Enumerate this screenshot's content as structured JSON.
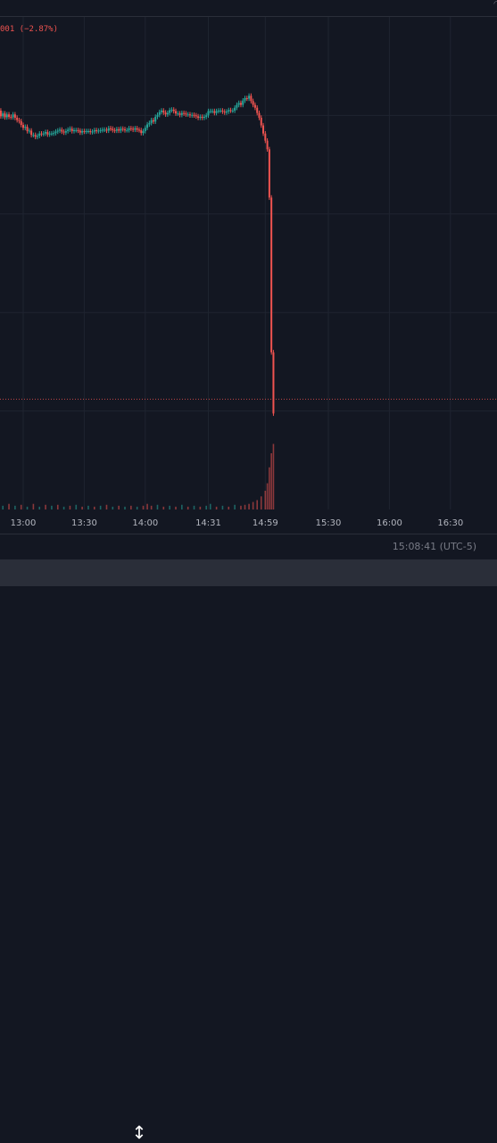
{
  "legend": {
    "change_text": "001 (−2.87%)"
  },
  "status_bar": {
    "clock": "15:08:41 (UTC-5)"
  },
  "colors": {
    "up": "#26a69a",
    "down": "#ef5350",
    "background": "#131722",
    "grid": "#1f2430"
  },
  "icons": {
    "resize": "vertical-resize-icon",
    "corner": "corner-mark-icon"
  },
  "chart_data": {
    "type": "candlestick",
    "x_ticks": [
      "13:00",
      "13:30",
      "14:00",
      "14:31",
      "14:59",
      "15:30",
      "16:00",
      "16:30"
    ],
    "tick_minutes": [
      780,
      810,
      840,
      871,
      899,
      930,
      960,
      990
    ],
    "price_range": [
      0,
      100
    ],
    "grid": true,
    "reference_line_level": 20,
    "series": [
      {
        "t": 767,
        "o": 78.5,
        "c": 79.5
      },
      {
        "t": 768,
        "o": 79.5,
        "c": 80.4
      },
      {
        "t": 769,
        "o": 80.4,
        "c": 79.2
      },
      {
        "t": 770,
        "o": 79.2,
        "c": 79.8
      },
      {
        "t": 771,
        "o": 79.8,
        "c": 79.0
      },
      {
        "t": 772,
        "o": 79.0,
        "c": 79.6
      },
      {
        "t": 773,
        "o": 79.6,
        "c": 79.1
      },
      {
        "t": 774,
        "o": 79.1,
        "c": 79.0
      },
      {
        "t": 775,
        "o": 79.0,
        "c": 79.6
      },
      {
        "t": 776,
        "o": 79.6,
        "c": 78.9
      },
      {
        "t": 777,
        "o": 78.9,
        "c": 78.4
      },
      {
        "t": 778,
        "o": 78.4,
        "c": 78.2
      },
      {
        "t": 779,
        "o": 78.2,
        "c": 77.4
      },
      {
        "t": 780,
        "o": 77.4,
        "c": 76.8
      },
      {
        "t": 781,
        "o": 76.8,
        "c": 77.0
      },
      {
        "t": 782,
        "o": 77.0,
        "c": 76.1
      },
      {
        "t": 783,
        "o": 76.1,
        "c": 76.2
      },
      {
        "t": 784,
        "o": 76.2,
        "c": 75.3
      },
      {
        "t": 785,
        "o": 75.3,
        "c": 75.3
      },
      {
        "t": 786,
        "o": 75.3,
        "c": 74.9
      },
      {
        "t": 787,
        "o": 74.9,
        "c": 75.1
      },
      {
        "t": 788,
        "o": 75.1,
        "c": 75.6
      },
      {
        "t": 789,
        "o": 75.6,
        "c": 75.5
      },
      {
        "t": 790,
        "o": 75.5,
        "c": 75.6
      },
      {
        "t": 791,
        "o": 75.6,
        "c": 75.9
      },
      {
        "t": 792,
        "o": 75.9,
        "c": 75.4
      },
      {
        "t": 793,
        "o": 75.4,
        "c": 75.6
      },
      {
        "t": 794,
        "o": 75.6,
        "c": 75.6
      },
      {
        "t": 795,
        "o": 75.6,
        "c": 75.7
      },
      {
        "t": 796,
        "o": 75.7,
        "c": 76.0
      },
      {
        "t": 797,
        "o": 76.0,
        "c": 76.2
      },
      {
        "t": 798,
        "o": 76.2,
        "c": 76.4
      },
      {
        "t": 799,
        "o": 76.4,
        "c": 76.0
      },
      {
        "t": 800,
        "o": 76.0,
        "c": 75.8
      },
      {
        "t": 801,
        "o": 75.8,
        "c": 76.1
      },
      {
        "t": 802,
        "o": 76.1,
        "c": 76.4
      },
      {
        "t": 803,
        "o": 76.4,
        "c": 76.6
      },
      {
        "t": 804,
        "o": 76.6,
        "c": 76.1
      },
      {
        "t": 805,
        "o": 76.1,
        "c": 76.3
      },
      {
        "t": 806,
        "o": 76.3,
        "c": 76.3
      },
      {
        "t": 807,
        "o": 76.3,
        "c": 76.2
      },
      {
        "t": 808,
        "o": 76.2,
        "c": 75.8
      },
      {
        "t": 809,
        "o": 75.8,
        "c": 76.1
      },
      {
        "t": 810,
        "o": 76.1,
        "c": 76.0
      },
      {
        "t": 811,
        "o": 76.0,
        "c": 76.1
      },
      {
        "t": 812,
        "o": 76.1,
        "c": 76.1
      },
      {
        "t": 813,
        "o": 76.1,
        "c": 75.9
      },
      {
        "t": 814,
        "o": 75.9,
        "c": 76.0
      },
      {
        "t": 815,
        "o": 76.0,
        "c": 76.3
      },
      {
        "t": 816,
        "o": 76.3,
        "c": 76.1
      },
      {
        "t": 817,
        "o": 76.1,
        "c": 76.2
      },
      {
        "t": 818,
        "o": 76.2,
        "c": 76.3
      },
      {
        "t": 819,
        "o": 76.3,
        "c": 76.4
      },
      {
        "t": 820,
        "o": 76.4,
        "c": 76.4
      },
      {
        "t": 821,
        "o": 76.4,
        "c": 76.2
      },
      {
        "t": 822,
        "o": 76.2,
        "c": 76.7
      },
      {
        "t": 823,
        "o": 76.7,
        "c": 76.6
      },
      {
        "t": 824,
        "o": 76.6,
        "c": 76.3
      },
      {
        "t": 825,
        "o": 76.3,
        "c": 76.2
      },
      {
        "t": 826,
        "o": 76.2,
        "c": 76.5
      },
      {
        "t": 827,
        "o": 76.5,
        "c": 76.2
      },
      {
        "t": 828,
        "o": 76.2,
        "c": 76.6
      },
      {
        "t": 829,
        "o": 76.6,
        "c": 76.5
      },
      {
        "t": 830,
        "o": 76.5,
        "c": 76.3
      },
      {
        "t": 831,
        "o": 76.3,
        "c": 76.3
      },
      {
        "t": 832,
        "o": 76.3,
        "c": 76.7
      },
      {
        "t": 833,
        "o": 76.7,
        "c": 76.6
      },
      {
        "t": 834,
        "o": 76.6,
        "c": 76.4
      },
      {
        "t": 835,
        "o": 76.4,
        "c": 76.7
      },
      {
        "t": 836,
        "o": 76.7,
        "c": 76.4
      },
      {
        "t": 837,
        "o": 76.4,
        "c": 76.3
      },
      {
        "t": 838,
        "o": 76.3,
        "c": 75.7
      },
      {
        "t": 839,
        "o": 75.7,
        "c": 76.1
      },
      {
        "t": 840,
        "o": 76.1,
        "c": 76.8
      },
      {
        "t": 841,
        "o": 76.8,
        "c": 77.5
      },
      {
        "t": 842,
        "o": 77.5,
        "c": 77.8
      },
      {
        "t": 843,
        "o": 77.8,
        "c": 78.4
      },
      {
        "t": 844,
        "o": 78.4,
        "c": 78.1
      },
      {
        "t": 845,
        "o": 78.1,
        "c": 79.1
      },
      {
        "t": 846,
        "o": 79.1,
        "c": 79.5
      },
      {
        "t": 847,
        "o": 79.5,
        "c": 80.1
      },
      {
        "t": 848,
        "o": 80.1,
        "c": 80.4
      },
      {
        "t": 849,
        "o": 80.4,
        "c": 80.0
      },
      {
        "t": 850,
        "o": 80.0,
        "c": 79.6
      },
      {
        "t": 851,
        "o": 79.6,
        "c": 79.9
      },
      {
        "t": 852,
        "o": 79.9,
        "c": 80.5
      },
      {
        "t": 853,
        "o": 80.5,
        "c": 80.6
      },
      {
        "t": 854,
        "o": 80.6,
        "c": 80.3
      },
      {
        "t": 855,
        "o": 80.3,
        "c": 79.8
      },
      {
        "t": 856,
        "o": 79.8,
        "c": 79.8
      },
      {
        "t": 857,
        "o": 79.8,
        "c": 79.5
      },
      {
        "t": 858,
        "o": 79.5,
        "c": 79.9
      },
      {
        "t": 859,
        "o": 79.9,
        "c": 79.8
      },
      {
        "t": 860,
        "o": 79.8,
        "c": 79.6
      },
      {
        "t": 861,
        "o": 79.6,
        "c": 79.6
      },
      {
        "t": 862,
        "o": 79.6,
        "c": 79.4
      },
      {
        "t": 863,
        "o": 79.4,
        "c": 79.5
      },
      {
        "t": 864,
        "o": 79.5,
        "c": 79.4
      },
      {
        "t": 865,
        "o": 79.4,
        "c": 79.2
      },
      {
        "t": 866,
        "o": 79.2,
        "c": 78.9
      },
      {
        "t": 867,
        "o": 78.9,
        "c": 79.1
      },
      {
        "t": 868,
        "o": 79.1,
        "c": 78.9
      },
      {
        "t": 869,
        "o": 78.9,
        "c": 79.1
      },
      {
        "t": 870,
        "o": 79.1,
        "c": 79.4
      },
      {
        "t": 871,
        "o": 79.4,
        "c": 80.3
      },
      {
        "t": 872,
        "o": 80.3,
        "c": 80.3
      },
      {
        "t": 873,
        "o": 80.3,
        "c": 80.3
      },
      {
        "t": 874,
        "o": 80.3,
        "c": 79.9
      },
      {
        "t": 875,
        "o": 79.9,
        "c": 80.3
      },
      {
        "t": 876,
        "o": 80.3,
        "c": 80.4
      },
      {
        "t": 877,
        "o": 80.4,
        "c": 80.4
      },
      {
        "t": 878,
        "o": 80.4,
        "c": 80.2
      },
      {
        "t": 879,
        "o": 80.2,
        "c": 80.0
      },
      {
        "t": 880,
        "o": 80.0,
        "c": 80.2
      },
      {
        "t": 881,
        "o": 80.2,
        "c": 80.5
      },
      {
        "t": 882,
        "o": 80.5,
        "c": 80.4
      },
      {
        "t": 883,
        "o": 80.4,
        "c": 80.4
      },
      {
        "t": 884,
        "o": 80.4,
        "c": 81.0
      },
      {
        "t": 885,
        "o": 81.0,
        "c": 81.6
      },
      {
        "t": 886,
        "o": 81.6,
        "c": 82.0
      },
      {
        "t": 887,
        "o": 82.0,
        "c": 81.6
      },
      {
        "t": 888,
        "o": 81.6,
        "c": 82.5
      },
      {
        "t": 889,
        "o": 82.5,
        "c": 83.0
      },
      {
        "t": 890,
        "o": 83.0,
        "c": 82.9
      },
      {
        "t": 891,
        "o": 82.9,
        "c": 83.5
      },
      {
        "t": 892,
        "o": 83.5,
        "c": 82.4
      },
      {
        "t": 893,
        "o": 82.4,
        "c": 81.6
      },
      {
        "t": 894,
        "o": 81.6,
        "c": 81.0
      },
      {
        "t": 895,
        "o": 81.0,
        "c": 79.9
      },
      {
        "t": 896,
        "o": 79.9,
        "c": 78.9
      },
      {
        "t": 897,
        "o": 78.9,
        "c": 77.3
      },
      {
        "t": 898,
        "o": 77.3,
        "c": 75.6
      },
      {
        "t": 899,
        "o": 75.6,
        "c": 74.1
      },
      {
        "t": 900,
        "o": 74.1,
        "c": 72.3
      },
      {
        "t": 901,
        "o": 72.3,
        "c": 62.2
      },
      {
        "t": 902,
        "o": 62.2,
        "c": 29.8
      },
      {
        "t": 903,
        "o": 29.8,
        "c": 17.0
      }
    ],
    "volume": [
      {
        "t": 767,
        "v": 5
      },
      {
        "t": 770,
        "v": 4
      },
      {
        "t": 773,
        "v": 6
      },
      {
        "t": 776,
        "v": 4
      },
      {
        "t": 779,
        "v": 5
      },
      {
        "t": 782,
        "v": 3
      },
      {
        "t": 785,
        "v": 6
      },
      {
        "t": 788,
        "v": 3
      },
      {
        "t": 791,
        "v": 5
      },
      {
        "t": 794,
        "v": 4
      },
      {
        "t": 797,
        "v": 5
      },
      {
        "t": 800,
        "v": 3
      },
      {
        "t": 803,
        "v": 4
      },
      {
        "t": 806,
        "v": 5
      },
      {
        "t": 809,
        "v": 3
      },
      {
        "t": 812,
        "v": 4
      },
      {
        "t": 815,
        "v": 3
      },
      {
        "t": 818,
        "v": 4
      },
      {
        "t": 821,
        "v": 5
      },
      {
        "t": 824,
        "v": 3
      },
      {
        "t": 827,
        "v": 4
      },
      {
        "t": 830,
        "v": 3
      },
      {
        "t": 833,
        "v": 4
      },
      {
        "t": 836,
        "v": 3
      },
      {
        "t": 839,
        "v": 4
      },
      {
        "t": 841,
        "v": 6
      },
      {
        "t": 843,
        "v": 4
      },
      {
        "t": 846,
        "v": 5
      },
      {
        "t": 849,
        "v": 3
      },
      {
        "t": 852,
        "v": 4
      },
      {
        "t": 855,
        "v": 3
      },
      {
        "t": 858,
        "v": 5
      },
      {
        "t": 861,
        "v": 3
      },
      {
        "t": 864,
        "v": 4
      },
      {
        "t": 867,
        "v": 3
      },
      {
        "t": 870,
        "v": 4
      },
      {
        "t": 872,
        "v": 6
      },
      {
        "t": 875,
        "v": 3
      },
      {
        "t": 878,
        "v": 4
      },
      {
        "t": 881,
        "v": 3
      },
      {
        "t": 884,
        "v": 5
      },
      {
        "t": 887,
        "v": 4
      },
      {
        "t": 889,
        "v": 5
      },
      {
        "t": 891,
        "v": 6
      },
      {
        "t": 893,
        "v": 8
      },
      {
        "t": 895,
        "v": 10
      },
      {
        "t": 897,
        "v": 14
      },
      {
        "t": 899,
        "v": 20
      },
      {
        "t": 900,
        "v": 28
      },
      {
        "t": 901,
        "v": 45
      },
      {
        "t": 902,
        "v": 60
      },
      {
        "t": 903,
        "v": 70
      }
    ]
  }
}
